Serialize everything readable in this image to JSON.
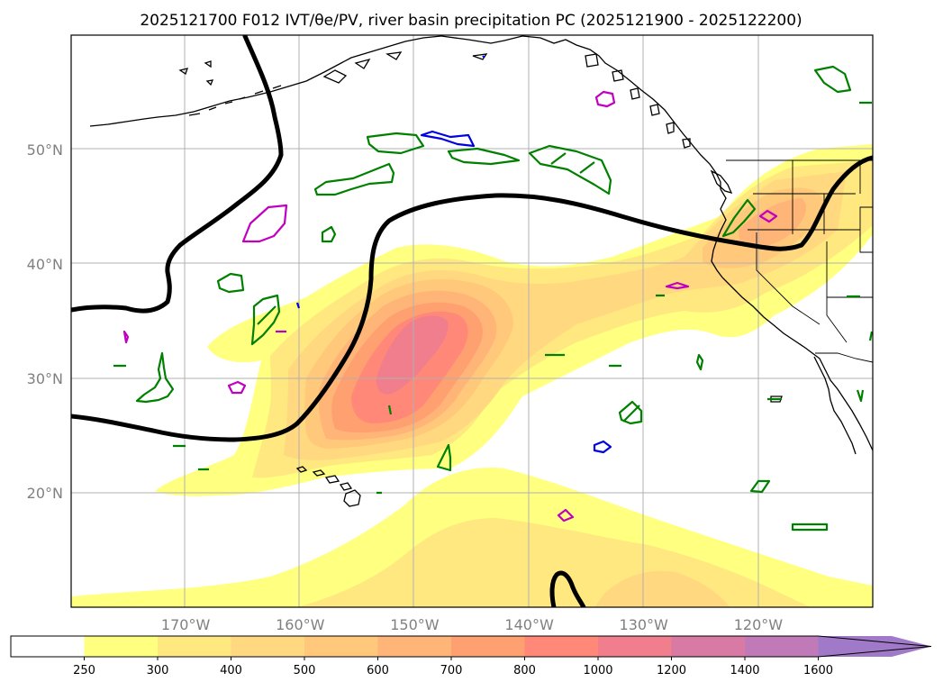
{
  "title": "2025121700 F012 IVT/θe/PV, river basin precipitation PC (2025121900 - 2025122200)",
  "map": {
    "lon_range": [
      -180,
      -110
    ],
    "lat_range": [
      10,
      60
    ],
    "lon_ticks": [
      {
        "lon": -170,
        "label": "170°W"
      },
      {
        "lon": -160,
        "label": "160°W"
      },
      {
        "lon": -150,
        "label": "150°W"
      },
      {
        "lon": -140,
        "label": "140°W"
      },
      {
        "lon": -130,
        "label": "130°W"
      },
      {
        "lon": -120,
        "label": "120°W"
      }
    ],
    "lat_ticks": [
      {
        "lat": 20,
        "label": "20°N"
      },
      {
        "lat": 30,
        "label": "30°N"
      },
      {
        "lat": 40,
        "label": "40°N"
      },
      {
        "lat": 50,
        "label": "50°N"
      }
    ]
  },
  "colorbar": {
    "levels": [
      "250",
      "300",
      "400",
      "500",
      "600",
      "700",
      "800",
      "1000",
      "1200",
      "1400",
      "1600"
    ],
    "colors": [
      "#ffff80",
      "#ffe880",
      "#ffd87f",
      "#ffc87a",
      "#ffb478",
      "#ffa070",
      "#ff8878",
      "#f07e8c",
      "#d87aa4",
      "#c07ab8",
      "#a07ac8"
    ],
    "under_color": "#ffffff",
    "extend": "max"
  },
  "legend_colors": {
    "pv_contour": "#000000",
    "theta_e_green": "#008000",
    "theta_e_magenta": "#c000c0",
    "theta_e_blue": "#0000e0",
    "grid": "#b0b0b0"
  }
}
